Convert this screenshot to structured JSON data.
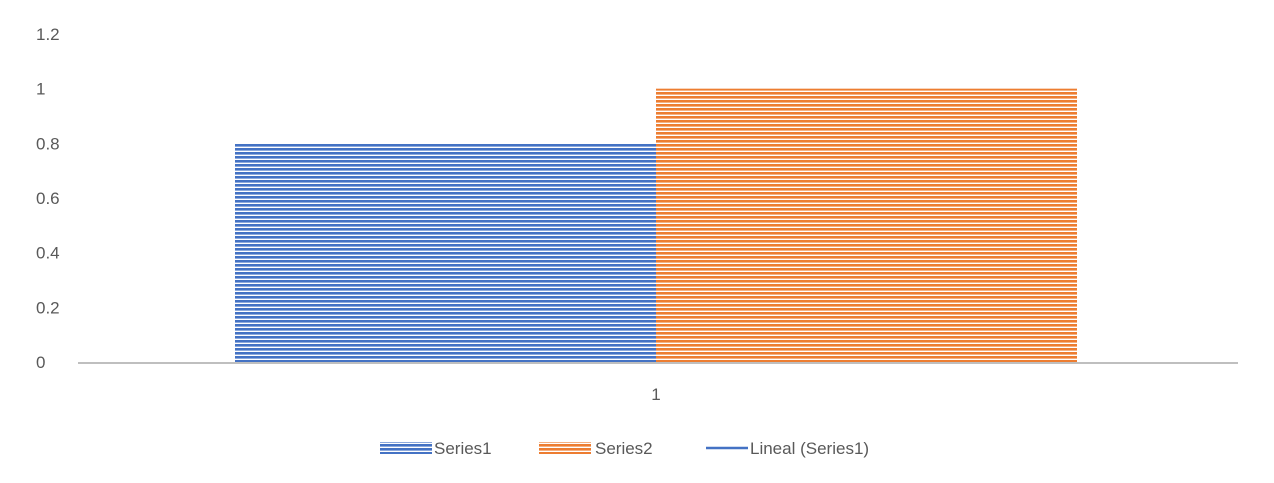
{
  "chart_data": {
    "type": "bar",
    "title": "",
    "xlabel": "",
    "ylabel": "",
    "categories": [
      "1"
    ],
    "ylim": [
      0,
      1.2
    ],
    "yticks": [
      "0",
      "0.2",
      "0.4",
      "0.6",
      "0.8",
      "1",
      "1.2"
    ],
    "grid": false,
    "legend_position": "bottom",
    "series": [
      {
        "name": "Series1",
        "values": [
          0.8
        ],
        "color": "#4472C4",
        "fill": "horizontal-stripes"
      },
      {
        "name": "Series2",
        "values": [
          1.0
        ],
        "color": "#ED7D31",
        "fill": "horizontal-stripes"
      }
    ],
    "trendlines": [
      {
        "name": "Lineal (Series1)",
        "color": "#4472C4",
        "style": "solid-line"
      }
    ]
  }
}
